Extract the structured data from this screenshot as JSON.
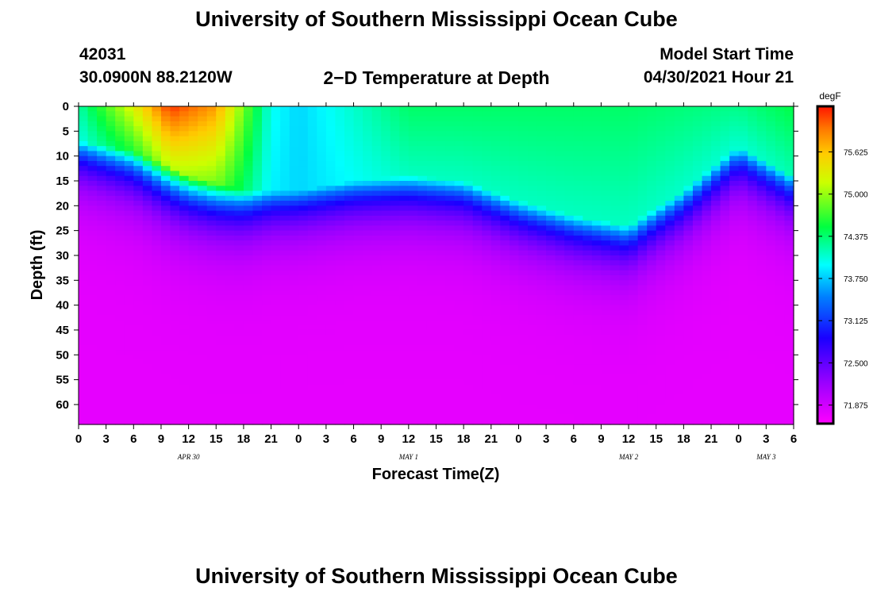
{
  "header": {
    "title": "University of Southern Mississippi Ocean Cube",
    "station_id": "42031",
    "location": "30.0900N  88.2120W",
    "plot_title": "2−D Temperature at Depth",
    "start_label": "Model Start Time",
    "start_value": "04/30/2021 Hour 21"
  },
  "footer": {
    "title": "University of Southern Mississippi Ocean Cube"
  },
  "chart_data": {
    "type": "heatmap",
    "title": "2−D Temperature at Depth",
    "xlabel": "Forecast Time(Z)",
    "ylabel": "Depth (ft)",
    "x_tick_labels": [
      "0",
      "3",
      "6",
      "9",
      "12",
      "15",
      "18",
      "21",
      "0",
      "3",
      "6",
      "9",
      "12",
      "15",
      "18",
      "21",
      "0",
      "3",
      "6",
      "9",
      "12",
      "15",
      "18",
      "21",
      "0",
      "3",
      "6"
    ],
    "x_range_hours": [
      0,
      78
    ],
    "day_labels": [
      {
        "label": "APR 30",
        "hour": 12
      },
      {
        "label": "MAY 1",
        "hour": 36
      },
      {
        "label": "MAY 2",
        "hour": 60
      },
      {
        "label": "MAY 3",
        "hour": 75
      }
    ],
    "y_ticks": [
      0,
      5,
      10,
      15,
      20,
      25,
      30,
      35,
      40,
      45,
      50,
      55,
      60
    ],
    "ylim": [
      0,
      64
    ],
    "y_reversed": true,
    "colorbar": {
      "unit": "degF",
      "ticks": [
        "75.625",
        "75.000",
        "74.375",
        "73.750",
        "73.125",
        "72.500",
        "71.875"
      ],
      "min": 71.6,
      "max": 76.3
    },
    "surface_temperature_degF_by_hour": [
      {
        "hour": 0,
        "t": 74.2
      },
      {
        "hour": 6,
        "t": 75.3
      },
      {
        "hour": 10,
        "t": 76.2
      },
      {
        "hour": 15,
        "t": 75.8
      },
      {
        "hour": 21,
        "t": 74.0
      },
      {
        "hour": 24,
        "t": 73.8
      },
      {
        "hour": 36,
        "t": 74.4
      },
      {
        "hour": 48,
        "t": 74.4
      },
      {
        "hour": 60,
        "t": 74.4
      },
      {
        "hour": 72,
        "t": 74.3
      },
      {
        "hour": 78,
        "t": 74.5
      }
    ],
    "thermocline_depth_ft_by_hour": [
      {
        "hour": 0,
        "d": 7
      },
      {
        "hour": 6,
        "d": 9
      },
      {
        "hour": 12,
        "d": 14
      },
      {
        "hour": 18,
        "d": 17
      },
      {
        "hour": 24,
        "d": 17
      },
      {
        "hour": 30,
        "d": 15
      },
      {
        "hour": 36,
        "d": 14
      },
      {
        "hour": 42,
        "d": 15
      },
      {
        "hour": 48,
        "d": 19
      },
      {
        "hour": 54,
        "d": 22
      },
      {
        "hour": 60,
        "d": 24
      },
      {
        "hour": 66,
        "d": 17
      },
      {
        "hour": 72,
        "d": 8
      },
      {
        "hour": 78,
        "d": 14
      }
    ],
    "bottom_temperature_degF": 71.75
  }
}
